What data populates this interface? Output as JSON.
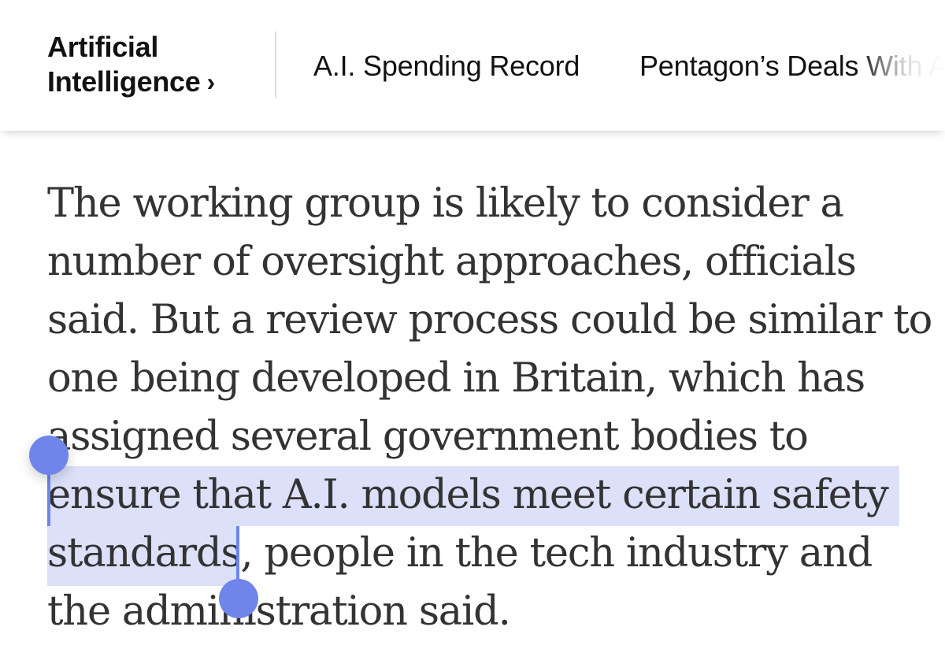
{
  "nav": {
    "section_line1": "Artificial",
    "section_line2": "Intelligence",
    "chevron": "›",
    "items": [
      {
        "label": "A.I. Spending Record"
      },
      {
        "label": "Pentagon’s Deals With A"
      }
    ]
  },
  "article": {
    "lines": [
      "The working group is likely to consider a",
      "number of oversight approaches, officials",
      "said. But a review process could be similar to",
      "one being developed in Britain, which has",
      "assigned several government bodies to",
      "ensure that A.I. models meet certain safety",
      "standards, people in the tech industry and",
      "the administration said."
    ],
    "selected_text": "ensure that A.I. models meet certain safety standards"
  },
  "colors": {
    "selection": "#6f85ea",
    "text": "#333333",
    "nav_text": "#121212"
  }
}
